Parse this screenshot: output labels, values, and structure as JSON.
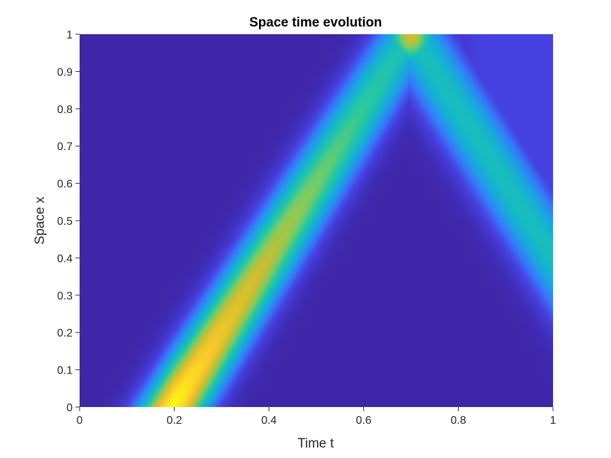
{
  "chart_data": {
    "type": "heatmap",
    "title": "Space time evolution",
    "xlabel": "Time t",
    "ylabel": "Space x",
    "xlim": [
      0,
      1
    ],
    "ylim": [
      0,
      1
    ],
    "xticks": [
      "0",
      "0.2",
      "0.4",
      "0.6",
      "0.8",
      "1"
    ],
    "yticks": [
      "0",
      "0.1",
      "0.2",
      "0.3",
      "0.4",
      "0.5",
      "0.6",
      "0.7",
      "0.8",
      "0.9",
      "1"
    ],
    "colormap": "parula",
    "colorbar": false,
    "grid": false,
    "background_color": "#3e26a8",
    "features": [
      {
        "name": "rising-wave",
        "t_start": 0.2,
        "x_start": 0.0,
        "t_end": 0.7,
        "x_end": 1.0,
        "peak_value_start": 1.0,
        "peak_value_end": 0.45
      },
      {
        "name": "reflected-wave",
        "t_start": 0.7,
        "x_start": 1.0,
        "t_end": 1.0,
        "x_end": 0.4,
        "peak_value": 0.45
      },
      {
        "name": "boundary-hotspot",
        "t": 0.7,
        "x": 1.0,
        "peak_value": 0.75
      }
    ]
  }
}
